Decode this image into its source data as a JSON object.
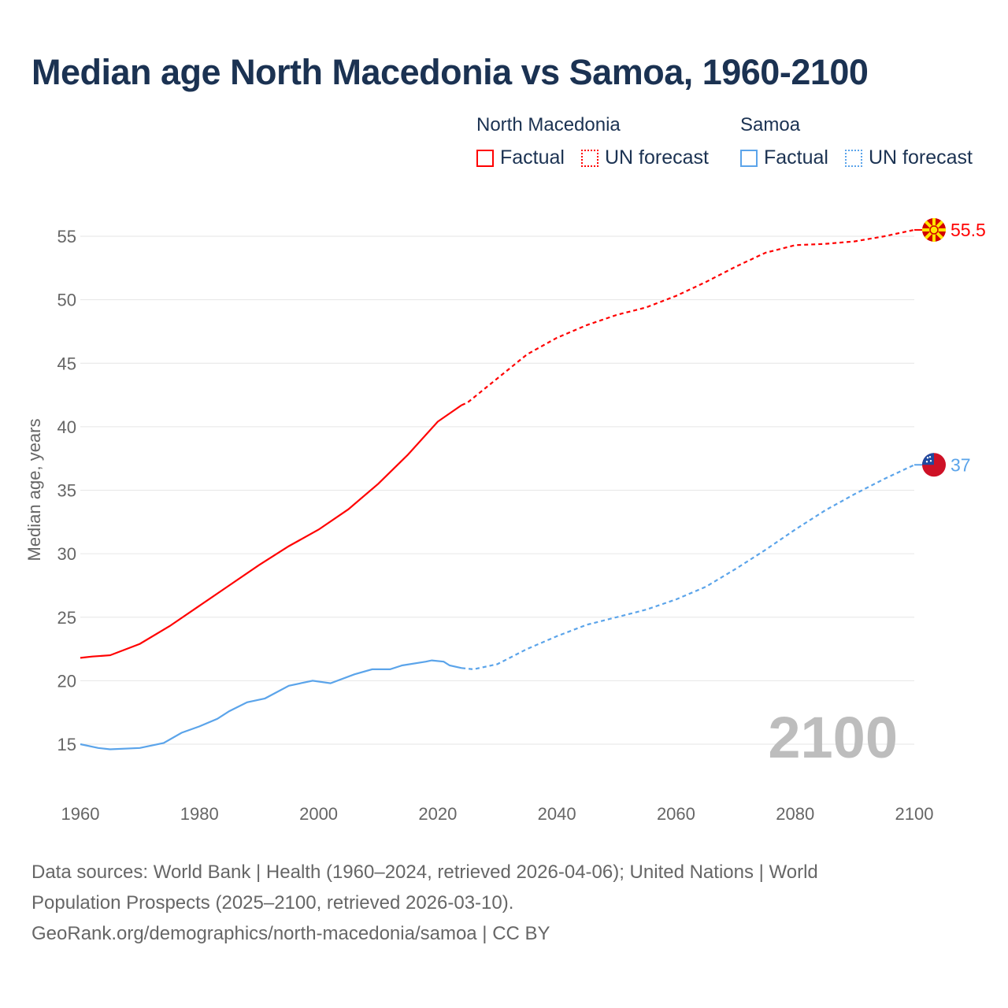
{
  "title": "Median age North Macedonia vs Samoa, 1960-2100",
  "legend": {
    "groups": [
      {
        "name": "North Macedonia",
        "color": "#ff0000",
        "factual": "Factual",
        "forecast": "UN forecast"
      },
      {
        "name": "Samoa",
        "color": "#5ba4ea",
        "factual": "Factual",
        "forecast": "UN forecast"
      }
    ]
  },
  "year_watermark": "2100",
  "footer": {
    "line1": "Data sources: World Bank | Health (1960–2024, retrieved 2026-04-06); United Nations | World",
    "line2": "Population Prospects (2025–2100, retrieved 2026-03-10).",
    "line3": "GeoRank.org/demographics/north-macedonia/samoa | CC BY"
  },
  "chart_data": {
    "type": "line",
    "title": "Median age North Macedonia vs Samoa, 1960-2100",
    "xlabel": "",
    "ylabel": "Median age, years",
    "xlim": [
      1960,
      2100
    ],
    "ylim": [
      15,
      55
    ],
    "x_ticks": [
      "1960",
      "1980",
      "2000",
      "2020",
      "2040",
      "2060",
      "2080",
      "2100"
    ],
    "y_ticks": [
      "15",
      "20",
      "25",
      "30",
      "35",
      "40",
      "45",
      "50",
      "55"
    ],
    "grid": true,
    "factual_until": 2024,
    "series": [
      {
        "name": "North Macedonia",
        "color": "#ff0000",
        "end_label": "55.5",
        "x": [
          1960,
          1962,
          1965,
          1970,
          1975,
          1980,
          1985,
          1990,
          1995,
          2000,
          2005,
          2010,
          2015,
          2020,
          2024,
          2025,
          2030,
          2035,
          2040,
          2045,
          2050,
          2055,
          2060,
          2065,
          2070,
          2075,
          2080,
          2085,
          2090,
          2095,
          2100
        ],
        "y": [
          21.8,
          21.9,
          22.0,
          22.9,
          24.3,
          25.9,
          27.5,
          29.1,
          30.6,
          31.9,
          33.5,
          35.5,
          37.8,
          40.4,
          41.7,
          41.9,
          43.8,
          45.7,
          47.0,
          48.0,
          48.8,
          49.4,
          50.3,
          51.4,
          52.6,
          53.7,
          54.3,
          54.4,
          54.6,
          55.0,
          55.5
        ]
      },
      {
        "name": "Samoa",
        "color": "#5ba4ea",
        "end_label": "37",
        "x": [
          1960,
          1963,
          1965,
          1970,
          1974,
          1977,
          1980,
          1983,
          1985,
          1988,
          1991,
          1995,
          1999,
          2002,
          2006,
          2009,
          2012,
          2014,
          2018,
          2019,
          2021,
          2022,
          2024,
          2026,
          2030,
          2035,
          2040,
          2045,
          2050,
          2055,
          2060,
          2065,
          2070,
          2075,
          2080,
          2085,
          2090,
          2095,
          2100
        ],
        "y": [
          15.0,
          14.7,
          14.6,
          14.7,
          15.1,
          15.9,
          16.4,
          17.0,
          17.6,
          18.3,
          18.6,
          19.6,
          20.0,
          19.8,
          20.5,
          20.9,
          20.9,
          21.2,
          21.5,
          21.6,
          21.5,
          21.2,
          21.0,
          20.9,
          21.3,
          22.5,
          23.5,
          24.4,
          25.0,
          25.6,
          26.4,
          27.4,
          28.8,
          30.3,
          31.9,
          33.4,
          34.7,
          35.9,
          37.0
        ]
      }
    ]
  }
}
